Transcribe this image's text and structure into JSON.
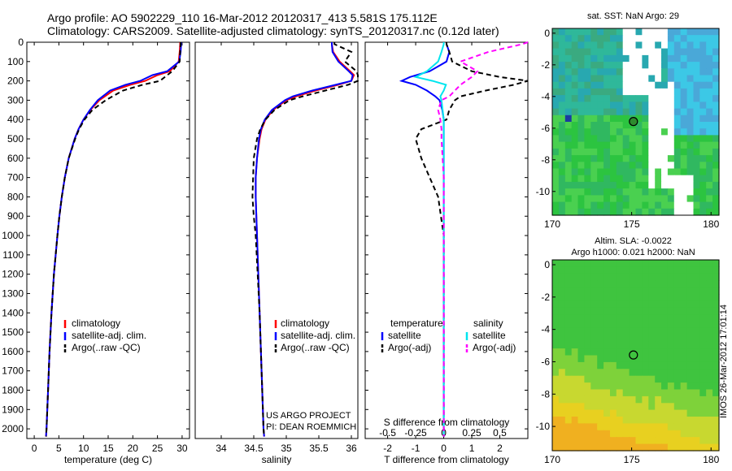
{
  "header": {
    "line1": "Argo profile: AO 5902229_110 16-Mar-2012 20120317_413 5.581S 175.112E",
    "line2": "Climatology: CARS2009. Satellite-adjusted climatology: synTS_20120317.nc (0.12d later)"
  },
  "map_sst": {
    "title": "sat. SST: NaN Argo: 29"
  },
  "map_sla": {
    "title1": "Altim. SLA: -0.0022",
    "title2": "Argo h1000: 0.021 h2000: NaN"
  },
  "credit": {
    "line1": "US ARGO PROJECT",
    "line2": "PI: DEAN ROEMMICH"
  },
  "stamp": "IMOS 26-Mar-2012 17:01:14",
  "colors": {
    "climatology": "#ff0000",
    "satellite": "#0000ff",
    "argo": "#000000",
    "sat_sal": "#00e5ee",
    "argo_sal": "#ff00ff"
  },
  "chart_data": [
    {
      "type": "line",
      "xlabel": "temperature (deg C)",
      "ylabel": "",
      "xlim": [
        -1.5,
        31.5
      ],
      "ylim": [
        2050,
        0
      ],
      "xticks": [
        0,
        5,
        10,
        15,
        20,
        25,
        30
      ],
      "yticks": [
        0,
        100,
        200,
        300,
        400,
        500,
        600,
        700,
        800,
        900,
        1000,
        1100,
        1200,
        1300,
        1400,
        1500,
        1600,
        1700,
        1800,
        1900,
        2000
      ],
      "legend": {
        "position": "middle",
        "entries": [
          "climatology",
          "satellite-adj. clim.",
          "Argo(..raw -QC)"
        ]
      },
      "depth": [
        0,
        10,
        50,
        100,
        150,
        170,
        200,
        220,
        250,
        300,
        350,
        400,
        450,
        500,
        600,
        700,
        800,
        900,
        1000,
        1200,
        1400,
        1600,
        1800,
        2000,
        2040
      ],
      "series": [
        {
          "name": "climatology",
          "values": [
            29.6,
            29.6,
            29.5,
            29.3,
            27.5,
            25.0,
            22.5,
            19.5,
            16.0,
            13.2,
            11.4,
            10.0,
            9.0,
            8.2,
            7.0,
            6.2,
            5.6,
            5.1,
            4.7,
            4.0,
            3.5,
            3.1,
            2.8,
            2.5,
            2.4
          ]
        },
        {
          "name": "satellite-adj. clim.",
          "values": [
            29.8,
            29.8,
            29.7,
            29.4,
            27.0,
            24.0,
            21.5,
            18.5,
            15.4,
            12.9,
            11.3,
            10.0,
            9.0,
            8.2,
            7.0,
            6.2,
            5.6,
            5.1,
            4.7,
            4.0,
            3.5,
            3.1,
            2.8,
            2.5,
            2.4
          ]
        },
        {
          "name": "Argo(..raw -QC)",
          "values": [
            29.7,
            29.7,
            29.6,
            29.5,
            28.0,
            27.0,
            25.5,
            22.0,
            18.0,
            14.5,
            11.8,
            10.2,
            9.1,
            8.3,
            7.0,
            6.2,
            5.6,
            5.1,
            4.7,
            4.0,
            3.5,
            3.1,
            2.8,
            2.5,
            2.4
          ]
        }
      ]
    },
    {
      "type": "line",
      "xlabel": "salinity",
      "xlim": [
        33.6,
        36.1
      ],
      "ylim": [
        2050,
        0
      ],
      "xticks": [
        34,
        34.5,
        35,
        35.5,
        36
      ],
      "legend": {
        "position": "middle",
        "entries": [
          "climatology",
          "satellite-adj. clim.",
          "Argo(..raw -QC)"
        ]
      },
      "depth": [
        0,
        10,
        50,
        100,
        150,
        170,
        200,
        220,
        250,
        280,
        300,
        350,
        400,
        450,
        500,
        600,
        700,
        800,
        900,
        1000,
        1200,
        1400,
        1600,
        1800,
        2000,
        2040
      ],
      "series": [
        {
          "name": "climatology",
          "values": [
            35.7,
            35.7,
            35.72,
            35.82,
            35.98,
            36.04,
            36.0,
            35.8,
            35.45,
            35.15,
            35.0,
            34.8,
            34.68,
            34.62,
            34.59,
            34.55,
            34.53,
            34.53,
            34.54,
            34.55,
            34.57,
            34.59,
            34.61,
            34.63,
            34.65,
            34.66
          ]
        },
        {
          "name": "satellite-adj. clim.",
          "values": [
            35.7,
            35.7,
            35.71,
            35.8,
            35.96,
            36.02,
            36.0,
            35.76,
            35.4,
            35.1,
            34.98,
            34.78,
            34.67,
            34.61,
            34.58,
            34.55,
            34.53,
            34.53,
            34.54,
            34.55,
            34.57,
            34.59,
            34.61,
            34.63,
            34.65,
            34.66
          ]
        },
        {
          "name": "Argo(..raw -QC)",
          "values": [
            35.74,
            35.74,
            36.0,
            35.9,
            36.08,
            36.1,
            36.1,
            35.95,
            35.6,
            35.25,
            35.05,
            34.82,
            34.68,
            34.6,
            34.55,
            34.5,
            34.49,
            34.48,
            34.5,
            34.53,
            34.56,
            34.59,
            34.61,
            34.63,
            34.65,
            34.66
          ]
        }
      ]
    },
    {
      "type": "line",
      "xlabel": "T difference from climatology",
      "xlabel_top": "S difference from climatology",
      "xlim": [
        -2.8,
        3.0
      ],
      "ylim": [
        2050,
        0
      ],
      "xticks": [
        -2,
        -1,
        0,
        1,
        2
      ],
      "xticks_sal": [
        -0.5,
        -0.25,
        0,
        0.25,
        0.5
      ],
      "xtick_labels_sal": [
        "-0.5",
        "-0.25",
        "0",
        "0.25",
        "0.5"
      ],
      "legend": {
        "position": "middle",
        "headers": [
          "temperature",
          "salinity"
        ],
        "entries": [
          "satellite",
          "Argo(-adj)",
          "satellite",
          "Argo(-adj)"
        ]
      },
      "depth": [
        0,
        10,
        50,
        100,
        150,
        180,
        200,
        220,
        250,
        280,
        300,
        350,
        400,
        450,
        500,
        600,
        700,
        800,
        900,
        1000,
        1200,
        1400,
        1600,
        1800,
        2000,
        2040
      ],
      "series": [
        {
          "name": "temperature satellite",
          "values": [
            0.1,
            0.1,
            0.2,
            0.1,
            -0.5,
            -1.2,
            -1.5,
            -1.0,
            -0.6,
            -0.3,
            -0.15,
            -0.05,
            0,
            0,
            0,
            0,
            0,
            0,
            0,
            0,
            0,
            0,
            0,
            0,
            0,
            0
          ]
        },
        {
          "name": "temperature Argo(-adj)",
          "values": [
            0.1,
            0.1,
            0.2,
            0.3,
            1.0,
            2.0,
            3.0,
            2.5,
            1.5,
            0.6,
            0.4,
            0.2,
            0.1,
            -0.8,
            -1.0,
            -0.8,
            -0.5,
            -0.2,
            -0.1,
            0,
            0,
            0,
            0,
            0,
            0,
            0
          ]
        },
        {
          "name": "salinity satellite",
          "values": [
            0,
            0,
            -0.02,
            -0.05,
            -0.15,
            -0.25,
            -0.1,
            0.02,
            0.0,
            -0.03,
            -0.02,
            -0.01,
            0,
            0,
            0,
            0,
            0,
            0,
            0,
            0,
            0,
            0,
            0,
            0,
            0,
            0
          ]
        },
        {
          "name": "salinity Argo(-adj)",
          "values": [
            0.75,
            0.7,
            0.4,
            0.15,
            0.3,
            0.25,
            0.2,
            0.15,
            0.1,
            0.05,
            -0.02,
            -0.05,
            -0.03,
            -0.02,
            -0.02,
            -0.01,
            0,
            0,
            0,
            0,
            0,
            0,
            0,
            0,
            0,
            0
          ]
        }
      ]
    },
    {
      "type": "heatmap",
      "title": "sat. SST: NaN Argo: 29",
      "xlim": [
        170,
        180.5
      ],
      "ylim": [
        -11.5,
        0.3
      ],
      "xticks": [
        170,
        175,
        180
      ],
      "yticks": [
        0,
        -2,
        -4,
        -6,
        -8,
        -10
      ],
      "argo_marker": {
        "lon": 175.112,
        "lat": -5.581
      }
    },
    {
      "type": "heatmap",
      "xlim": [
        170,
        180.5
      ],
      "ylim": [
        -11.5,
        0.3
      ],
      "xticks": [
        170,
        175,
        180
      ],
      "yticks": [
        0,
        -2,
        -4,
        -6,
        -8,
        -10
      ],
      "argo_marker": {
        "lon": 175.112,
        "lat": -5.581
      }
    }
  ]
}
